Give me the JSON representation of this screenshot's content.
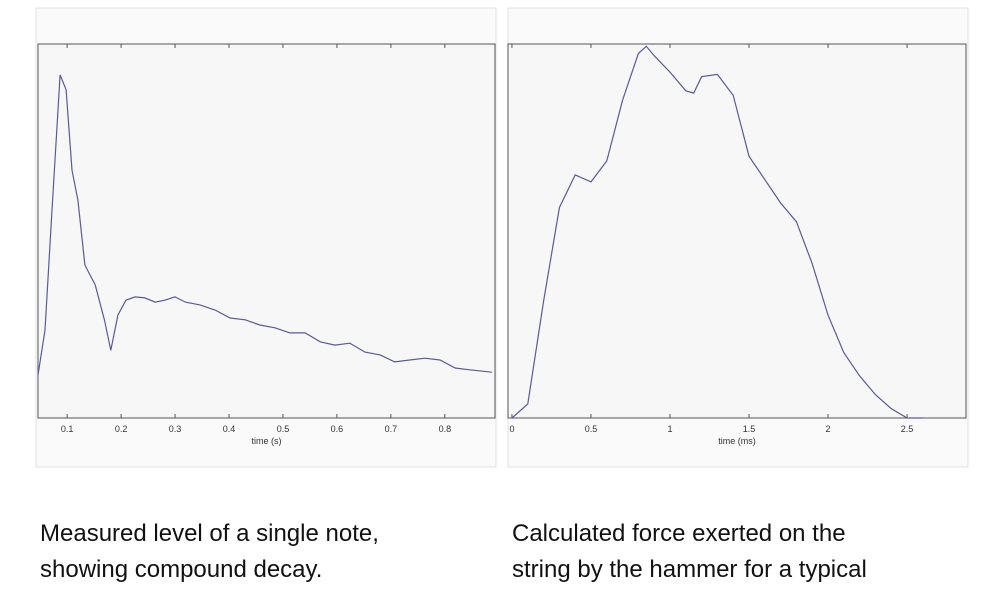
{
  "chart_data": [
    {
      "type": "line",
      "xlabel": "time (s)",
      "xlim": [
        0.046,
        0.893
      ],
      "ylim": [
        0,
        8
      ],
      "xticks": [
        0.1,
        0.2,
        0.3,
        0.4,
        0.5,
        0.6,
        0.7,
        0.8
      ],
      "series": [
        {
          "color": "#5a5a9a",
          "x": [
            0.046,
            0.059,
            0.072,
            0.087,
            0.098,
            0.109,
            0.12,
            0.133,
            0.152,
            0.169,
            0.181,
            0.194,
            0.209,
            0.226,
            0.244,
            0.263,
            0.281,
            0.3,
            0.319,
            0.346,
            0.374,
            0.402,
            0.43,
            0.457,
            0.485,
            0.513,
            0.541,
            0.569,
            0.596,
            0.624,
            0.652,
            0.68,
            0.707,
            0.735,
            0.763,
            0.791,
            0.819,
            0.846,
            0.887
          ],
          "values": [
            0.92,
            1.88,
            4.45,
            7.34,
            7.02,
            5.3,
            4.66,
            3.27,
            2.85,
            2.1,
            1.45,
            2.2,
            2.52,
            2.59,
            2.57,
            2.48,
            2.52,
            2.59,
            2.48,
            2.42,
            2.31,
            2.14,
            2.1,
            1.99,
            1.93,
            1.82,
            1.82,
            1.63,
            1.56,
            1.6,
            1.41,
            1.35,
            1.2,
            1.24,
            1.28,
            1.24,
            1.07,
            1.03,
            0.98
          ]
        }
      ]
    },
    {
      "type": "line",
      "xlabel": "time (ms)",
      "xlim": [
        -0.025,
        2.873
      ],
      "ylim": [
        0,
        8
      ],
      "xticks": [
        0,
        0.5,
        1,
        1.5,
        2,
        2.5
      ],
      "series": [
        {
          "color": "#5a5a9a",
          "x": [
            0,
            0.1,
            0.2,
            0.3,
            0.4,
            0.5,
            0.6,
            0.7,
            0.8,
            0.85,
            0.9,
            1.0,
            1.1,
            1.15,
            1.2,
            1.3,
            1.4,
            1.5,
            1.6,
            1.7,
            1.8,
            1.9,
            2.0,
            2.1,
            2.2,
            2.3,
            2.4,
            2.5,
            2.6
          ],
          "values": [
            0,
            0.3,
            2.5,
            4.5,
            5.2,
            5.05,
            5.5,
            6.8,
            7.8,
            7.95,
            7.75,
            7.4,
            7.0,
            6.95,
            7.3,
            7.35,
            6.9,
            5.6,
            5.1,
            4.6,
            4.2,
            3.3,
            2.2,
            1.4,
            0.9,
            0.5,
            0.2,
            0,
            0
          ]
        }
      ]
    }
  ],
  "captions": [
    [
      "Measured level of a single note,",
      "showing compound decay."
    ],
    [
      "Calculated force exerted on the",
      "string by the hammer for a typical"
    ]
  ]
}
